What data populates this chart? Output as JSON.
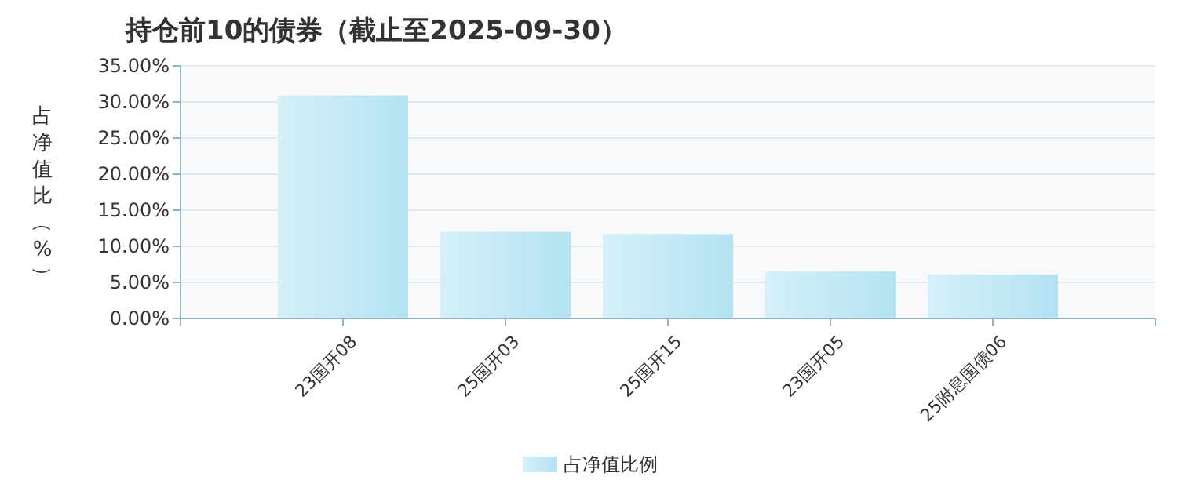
{
  "chart_data": {
    "type": "bar",
    "title": "持仓前10的债券（截止至2025-09-30）",
    "ylabel": "占净值比（%）",
    "categories": [
      "23国开08",
      "25国开03",
      "25国开15",
      "23国开05",
      "25附息国债06"
    ],
    "series": [
      {
        "name": "占净值比例",
        "color": "#b3e3f3",
        "values": [
          30.9,
          12.0,
          11.7,
          6.5,
          6.1
        ]
      }
    ],
    "ylim": [
      0,
      35
    ],
    "yticks": [
      {
        "value": 0,
        "label": "0.00%"
      },
      {
        "value": 5,
        "label": "5.00%"
      },
      {
        "value": 10,
        "label": "10.00%"
      },
      {
        "value": 15,
        "label": "15.00%"
      },
      {
        "value": 20,
        "label": "20.00%"
      },
      {
        "value": 25,
        "label": "25.00%"
      },
      {
        "value": 30,
        "label": "30.00%"
      },
      {
        "value": 35,
        "label": "35.00%"
      }
    ],
    "grid": "y",
    "legend": "bottom"
  }
}
